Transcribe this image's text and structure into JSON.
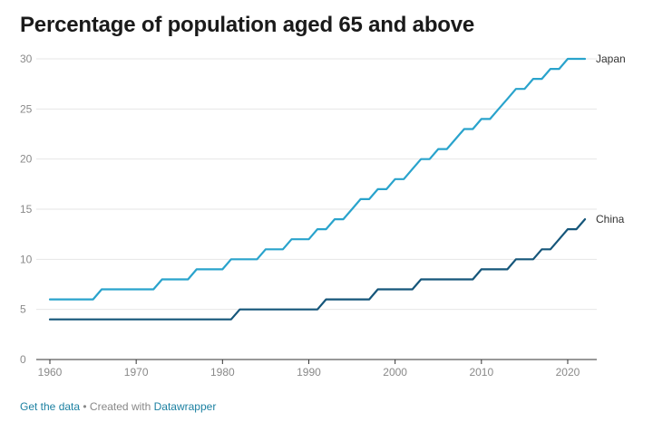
{
  "title": "Percentage of population aged 65 and above",
  "footer": {
    "get_data": "Get the data",
    "separator": " • Created with ",
    "tool": "Datawrapper"
  },
  "colors": {
    "japan": "#29a3cc",
    "china": "#15567a",
    "grid": "#e6e6e6",
    "axis": "#333333",
    "link": "#1d81a2"
  },
  "chart_data": {
    "type": "line",
    "title": "Percentage of population aged 65 and above",
    "xlabel": "",
    "ylabel": "",
    "xlim": [
      1960,
      2022
    ],
    "ylim": [
      0,
      30
    ],
    "x_ticks": [
      1960,
      1970,
      1980,
      1990,
      2000,
      2010,
      2020
    ],
    "y_ticks": [
      0,
      5,
      10,
      15,
      20,
      25,
      30
    ],
    "grid": true,
    "series": [
      {
        "name": "Japan",
        "color": "#29a3cc",
        "x": [
          1960,
          1961,
          1962,
          1963,
          1964,
          1965,
          1966,
          1967,
          1968,
          1969,
          1970,
          1971,
          1972,
          1973,
          1974,
          1975,
          1976,
          1977,
          1978,
          1979,
          1980,
          1981,
          1982,
          1983,
          1984,
          1985,
          1986,
          1987,
          1988,
          1989,
          1990,
          1991,
          1992,
          1993,
          1994,
          1995,
          1996,
          1997,
          1998,
          1999,
          2000,
          2001,
          2002,
          2003,
          2004,
          2005,
          2006,
          2007,
          2008,
          2009,
          2010,
          2011,
          2012,
          2013,
          2014,
          2015,
          2016,
          2017,
          2018,
          2019,
          2020,
          2021,
          2022
        ],
        "values": [
          6,
          6,
          6,
          6,
          6,
          6,
          7,
          7,
          7,
          7,
          7,
          7,
          7,
          8,
          8,
          8,
          8,
          9,
          9,
          9,
          9,
          10,
          10,
          10,
          10,
          11,
          11,
          11,
          12,
          12,
          12,
          13,
          13,
          14,
          14,
          15,
          16,
          16,
          17,
          17,
          18,
          18,
          19,
          20,
          20,
          21,
          21,
          22,
          23,
          23,
          24,
          24,
          25,
          26,
          27,
          27,
          28,
          28,
          29,
          29,
          30,
          30,
          30
        ]
      },
      {
        "name": "China",
        "color": "#15567a",
        "x": [
          1960,
          1961,
          1962,
          1963,
          1964,
          1965,
          1966,
          1967,
          1968,
          1969,
          1970,
          1971,
          1972,
          1973,
          1974,
          1975,
          1976,
          1977,
          1978,
          1979,
          1980,
          1981,
          1982,
          1983,
          1984,
          1985,
          1986,
          1987,
          1988,
          1989,
          1990,
          1991,
          1992,
          1993,
          1994,
          1995,
          1996,
          1997,
          1998,
          1999,
          2000,
          2001,
          2002,
          2003,
          2004,
          2005,
          2006,
          2007,
          2008,
          2009,
          2010,
          2011,
          2012,
          2013,
          2014,
          2015,
          2016,
          2017,
          2018,
          2019,
          2020,
          2021,
          2022
        ],
        "values": [
          4,
          4,
          4,
          4,
          4,
          4,
          4,
          4,
          4,
          4,
          4,
          4,
          4,
          4,
          4,
          4,
          4,
          4,
          4,
          4,
          4,
          4,
          5,
          5,
          5,
          5,
          5,
          5,
          5,
          5,
          5,
          5,
          6,
          6,
          6,
          6,
          6,
          6,
          7,
          7,
          7,
          7,
          7,
          8,
          8,
          8,
          8,
          8,
          8,
          8,
          9,
          9,
          9,
          9,
          10,
          10,
          10,
          11,
          11,
          12,
          13,
          13,
          14
        ]
      }
    ]
  }
}
